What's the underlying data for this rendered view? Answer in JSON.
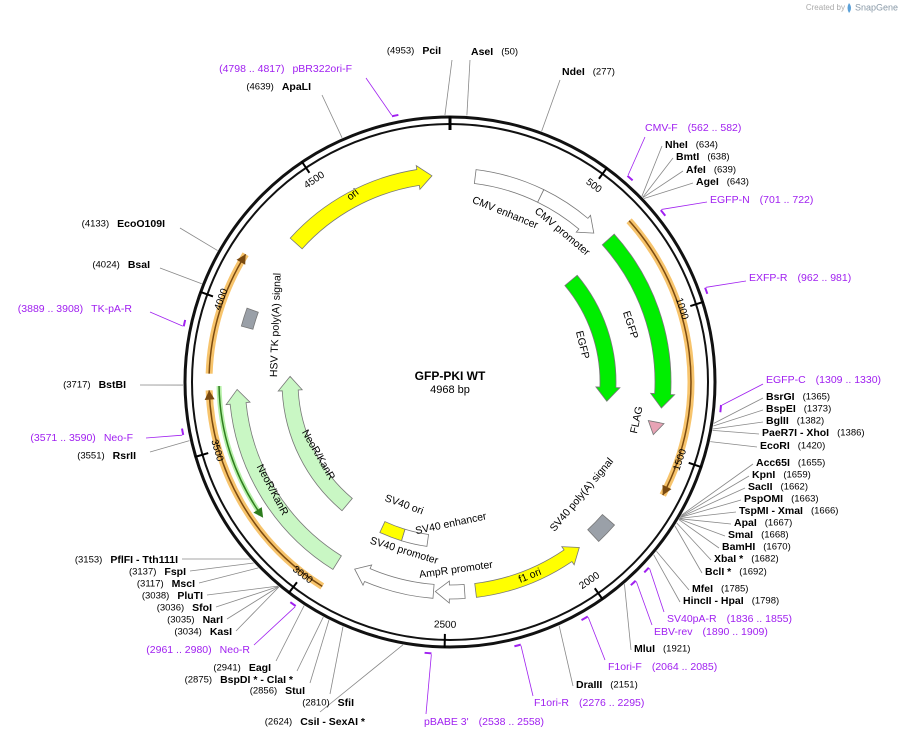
{
  "header": {
    "created_by": "Created by",
    "brand": "SnapGene"
  },
  "title": "GFP-PKI WT",
  "size": "4968 bp",
  "ring_ticks": [
    500,
    1000,
    1500,
    2000,
    2500,
    3000,
    3500,
    4000,
    4500
  ],
  "features": [
    {
      "name": "ori"
    },
    {
      "name": "CMV enhancer"
    },
    {
      "name": "CMV promoter"
    },
    {
      "name": "EGFP"
    },
    {
      "name": "EGFP"
    },
    {
      "name": "FLAG"
    },
    {
      "name": "SV40 poly(A) signal"
    },
    {
      "name": "f1 ori"
    },
    {
      "name": "AmpR promoter"
    },
    {
      "name": "SV40 promoter"
    },
    {
      "name": "SV40 enhancer"
    },
    {
      "name": "SV40 ori"
    },
    {
      "name": "NeoR/KanR"
    },
    {
      "name": "NeoR/KanR"
    },
    {
      "name": "HSV TK poly(A) signal"
    }
  ],
  "sites": [
    {
      "name": "PciI",
      "position": "(4953)"
    },
    {
      "name": "AseI",
      "position": "(50)"
    },
    {
      "name": "NdeI",
      "position": "(277)"
    },
    {
      "name": "ApaLI",
      "position": "(4639)"
    },
    {
      "name": "NheI",
      "position": "(634)"
    },
    {
      "name": "BmtI",
      "position": "(638)"
    },
    {
      "name": "AfeI",
      "position": "(639)"
    },
    {
      "name": "AgeI",
      "position": "(643)"
    },
    {
      "name": "EcoO109I",
      "position": "(4133)"
    },
    {
      "name": "BsaI",
      "position": "(4024)"
    },
    {
      "name": "BstBI",
      "position": "(3717)"
    },
    {
      "name": "RsrII",
      "position": "(3551)"
    },
    {
      "name": "BsrGI",
      "position": "(1365)"
    },
    {
      "name": "BspEI",
      "position": "(1373)"
    },
    {
      "name": "BglII",
      "position": "(1382)"
    },
    {
      "name": "PaeR7I - XhoI",
      "position": "(1386)"
    },
    {
      "name": "EcoRI",
      "position": "(1420)"
    },
    {
      "name": "Acc65I",
      "position": "(1655)"
    },
    {
      "name": "KpnI",
      "position": "(1659)"
    },
    {
      "name": "SacII",
      "position": "(1662)"
    },
    {
      "name": "PspOMI",
      "position": "(1663)"
    },
    {
      "name": "TspMI - XmaI",
      "position": "(1666)"
    },
    {
      "name": "ApaI",
      "position": "(1667)"
    },
    {
      "name": "SmaI",
      "position": "(1668)"
    },
    {
      "name": "BamHI",
      "position": "(1670)"
    },
    {
      "name": "XbaI *",
      "position": "(1682)"
    },
    {
      "name": "BclI *",
      "position": "(1692)"
    },
    {
      "name": "MfeI",
      "position": "(1785)"
    },
    {
      "name": "HincII - HpaI",
      "position": "(1798)"
    },
    {
      "name": "MluI",
      "position": "(1921)"
    },
    {
      "name": "DraIII",
      "position": "(2151)"
    },
    {
      "name": "CsiI - SexAI *",
      "position": "(2624)"
    },
    {
      "name": "SfiI",
      "position": "(2810)"
    },
    {
      "name": "StuI",
      "position": "(2856)"
    },
    {
      "name": "BspDI * - ClaI *",
      "position": "(2875)"
    },
    {
      "name": "EagI",
      "position": "(2941)"
    },
    {
      "name": "KasI",
      "position": "(3034)"
    },
    {
      "name": "NarI",
      "position": "(3035)"
    },
    {
      "name": "SfoI",
      "position": "(3036)"
    },
    {
      "name": "PluTI",
      "position": "(3038)"
    },
    {
      "name": "MscI",
      "position": "(3117)"
    },
    {
      "name": "FspI",
      "position": "(3137)"
    },
    {
      "name": "PflFI - Tth111I",
      "position": "(3153)"
    }
  ],
  "primers": [
    {
      "name": "pBR322ori-F",
      "range": "(4798 .. 4817)"
    },
    {
      "name": "CMV-F",
      "range": "(562 .. 582)"
    },
    {
      "name": "EGFP-N",
      "range": "(701 .. 722)"
    },
    {
      "name": "EXFP-R",
      "range": "(962 .. 981)"
    },
    {
      "name": "EGFP-C",
      "range": "(1309 .. 1330)"
    },
    {
      "name": "SV40pA-R",
      "range": "(1836 .. 1855)"
    },
    {
      "name": "EBV-rev",
      "range": "(1890 .. 1909)"
    },
    {
      "name": "F1ori-F",
      "range": "(2064 .. 2085)"
    },
    {
      "name": "F1ori-R",
      "range": "(2276 .. 2295)"
    },
    {
      "name": "pBABE 3'",
      "range": "(2538 .. 2558)"
    },
    {
      "name": "Neo-R",
      "range": "(2961 .. 2980)"
    },
    {
      "name": "Neo-F",
      "range": "(3571 .. 3590)"
    },
    {
      "name": "TK-pA-R",
      "range": "(3889 .. 3908)"
    }
  ]
}
